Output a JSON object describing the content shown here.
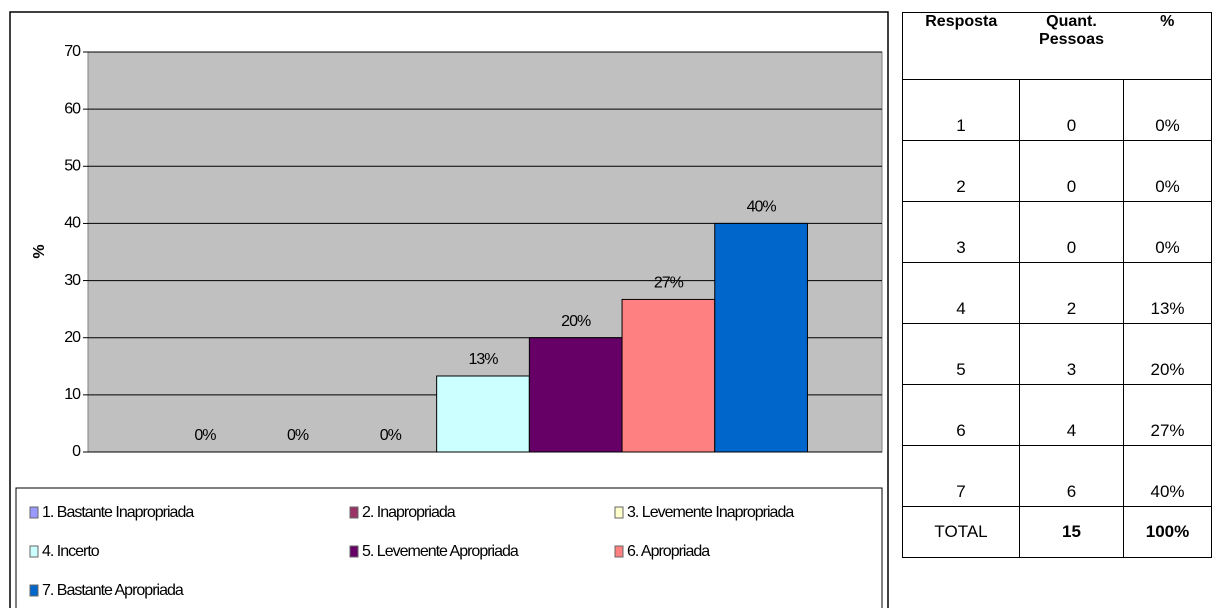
{
  "chart_data": {
    "type": "bar",
    "y_label": "%",
    "categories": [
      "1. Bastante Inapropriada",
      "2. Inapropriada",
      "3. Levemente Inapropriada",
      "4. Incerto",
      "5. Levemente Apropriada",
      "6. Apropriada",
      "7. Bastante Apropriada"
    ],
    "values": [
      0,
      0,
      0,
      13.3,
      20,
      26.7,
      40
    ],
    "value_labels": [
      "0%",
      "0%",
      "0%",
      "13%",
      "20%",
      "27%",
      "40%"
    ],
    "colors": [
      "#9999ff",
      "#993366",
      "#ffffcc",
      "#ccffff",
      "#660066",
      "#ff8080",
      "#0066cc"
    ],
    "ylim": [
      0,
      70
    ],
    "yticks": [
      0,
      10,
      20,
      30,
      40,
      50,
      60,
      70
    ],
    "grid": true,
    "legend": "bottom"
  },
  "table": {
    "header": [
      "Resposta",
      "Quant. Pessoas",
      "%"
    ],
    "rows": [
      [
        "1",
        "0",
        "0%"
      ],
      [
        "2",
        "0",
        "0%"
      ],
      [
        "3",
        "0",
        "0%"
      ],
      [
        "4",
        "2",
        "13%"
      ],
      [
        "5",
        "3",
        "20%"
      ],
      [
        "6",
        "4",
        "27%"
      ],
      [
        "7",
        "6",
        "40%"
      ]
    ],
    "total": [
      "TOTAL",
      "15",
      "100%"
    ]
  }
}
